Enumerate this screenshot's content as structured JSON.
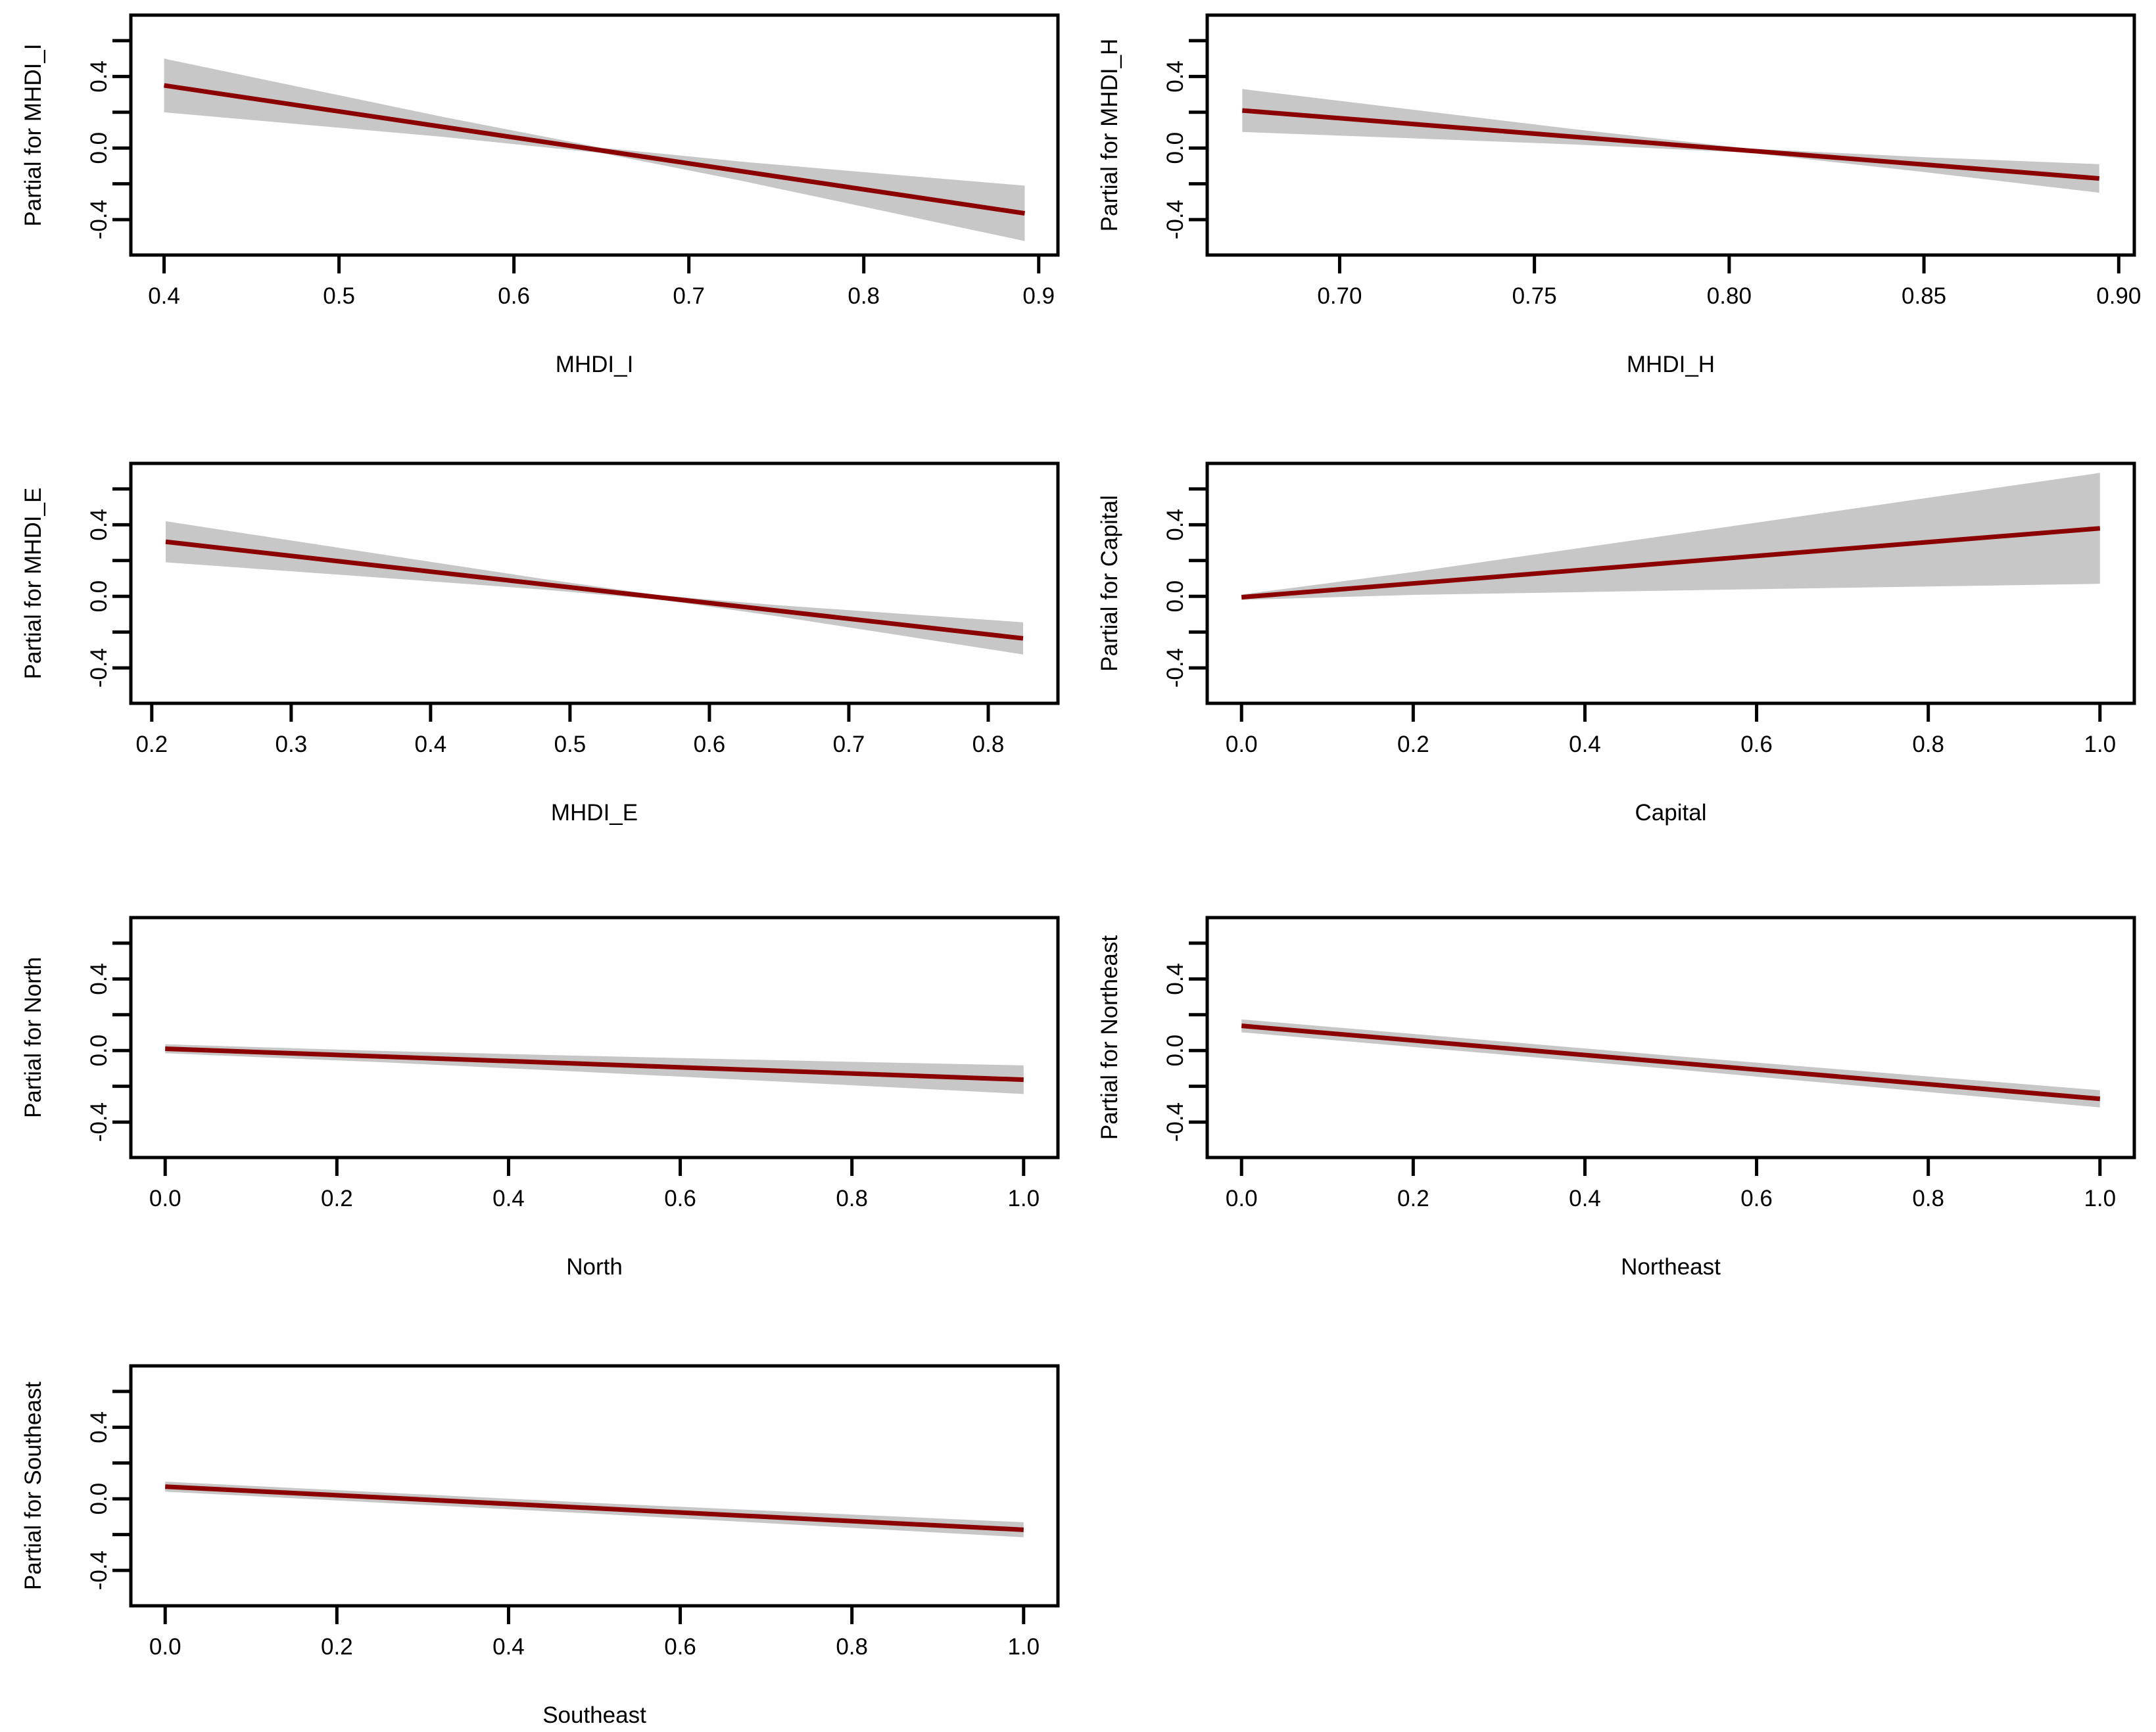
{
  "figure": {
    "background": "#ffffff",
    "line_color": "#8B0000",
    "band_color": "#C7C7C7",
    "axis_color": "#000000"
  },
  "y_axis": {
    "ylim": [
      -0.598,
      0.743
    ],
    "ticks": [
      {
        "v": -0.4,
        "label": "-0.4"
      },
      {
        "v": -0.2,
        "label": ""
      },
      {
        "v": 0.0,
        "label": "0.0"
      },
      {
        "v": 0.2,
        "label": ""
      },
      {
        "v": 0.4,
        "label": "0.4"
      },
      {
        "v": 0.6,
        "label": ""
      }
    ]
  },
  "chart_data": [
    {
      "type": "line",
      "ylabel": "Partial for MHDI_I",
      "xlabel": "MHDI_I",
      "xlim": [
        0.381,
        0.911
      ],
      "xticks": [
        {
          "v": 0.4,
          "label": "0.4"
        },
        {
          "v": 0.5,
          "label": "0.5"
        },
        {
          "v": 0.6,
          "label": "0.6"
        },
        {
          "v": 0.7,
          "label": "0.7"
        },
        {
          "v": 0.8,
          "label": "0.8"
        },
        {
          "v": 0.9,
          "label": "0.9"
        }
      ],
      "line": {
        "x": [
          0.4,
          0.892
        ],
        "y": [
          0.35,
          -0.365
        ]
      },
      "band": {
        "x": [
          0.4,
          0.48,
          0.56,
          0.65,
          0.73,
          0.81,
          0.892
        ],
        "upper": [
          0.5,
          0.336,
          0.173,
          0.002,
          -0.076,
          -0.143,
          -0.21
        ],
        "lower": [
          0.2,
          0.131,
          0.062,
          -0.028,
          -0.183,
          -0.349,
          -0.52
        ]
      }
    },
    {
      "type": "line",
      "ylabel": "Partial for MHDI_H",
      "xlabel": "MHDI_H",
      "xlim": [
        0.666,
        0.904
      ],
      "xticks": [
        {
          "v": 0.7,
          "label": "0.70"
        },
        {
          "v": 0.75,
          "label": "0.75"
        },
        {
          "v": 0.8,
          "label": "0.80"
        },
        {
          "v": 0.85,
          "label": "0.85"
        },
        {
          "v": 0.9,
          "label": "0.90"
        }
      ],
      "line": {
        "x": [
          0.675,
          0.895
        ],
        "y": [
          0.21,
          -0.17
        ]
      },
      "band": {
        "x": [
          0.675,
          0.72,
          0.76,
          0.805,
          0.85,
          0.895
        ],
        "upper": [
          0.33,
          0.211,
          0.106,
          -0.003,
          -0.051,
          -0.09
        ],
        "lower": [
          0.09,
          0.053,
          0.02,
          -0.026,
          -0.134,
          -0.25
        ]
      }
    },
    {
      "type": "line",
      "ylabel": "Partial for MHDI_E",
      "xlabel": "MHDI_E",
      "xlim": [
        0.185,
        0.85
      ],
      "xticks": [
        {
          "v": 0.2,
          "label": "0.2"
        },
        {
          "v": 0.3,
          "label": "0.3"
        },
        {
          "v": 0.4,
          "label": "0.4"
        },
        {
          "v": 0.5,
          "label": "0.5"
        },
        {
          "v": 0.6,
          "label": "0.6"
        },
        {
          "v": 0.7,
          "label": "0.7"
        },
        {
          "v": 0.8,
          "label": "0.8"
        }
      ],
      "line": {
        "x": [
          0.21,
          0.825
        ],
        "y": [
          0.305,
          -0.235
        ]
      },
      "band": {
        "x": [
          0.21,
          0.3,
          0.4,
          0.48,
          0.565,
          0.65,
          0.74,
          0.825
        ],
        "upper": [
          0.42,
          0.312,
          0.193,
          0.098,
          0.005,
          -0.05,
          -0.099,
          -0.145
        ],
        "lower": [
          0.19,
          0.14,
          0.084,
          0.038,
          -0.019,
          -0.113,
          -0.222,
          -0.325
        ]
      }
    },
    {
      "type": "line",
      "ylabel": "Partial for Capital",
      "xlabel": "Capital",
      "xlim": [
        -0.04,
        1.04
      ],
      "xticks": [
        {
          "v": 0.0,
          "label": "0.0"
        },
        {
          "v": 0.2,
          "label": "0.2"
        },
        {
          "v": 0.4,
          "label": "0.4"
        },
        {
          "v": 0.6,
          "label": "0.6"
        },
        {
          "v": 0.8,
          "label": "0.8"
        },
        {
          "v": 1.0,
          "label": "1.0"
        }
      ],
      "line": {
        "x": [
          0.0,
          1.0
        ],
        "y": [
          -0.005,
          0.38
        ]
      },
      "band": {
        "x": [
          0.0,
          0.2,
          0.4,
          0.6,
          0.8,
          1.0
        ],
        "upper": [
          0.01,
          0.136,
          0.274,
          0.412,
          0.551,
          0.69
        ],
        "lower": [
          -0.02,
          0.008,
          0.024,
          0.04,
          0.055,
          0.07
        ]
      }
    },
    {
      "type": "line",
      "ylabel": "Partial for North",
      "xlabel": "North",
      "xlim": [
        -0.04,
        1.04
      ],
      "xticks": [
        {
          "v": 0.0,
          "label": "0.0"
        },
        {
          "v": 0.2,
          "label": "0.2"
        },
        {
          "v": 0.4,
          "label": "0.4"
        },
        {
          "v": 0.6,
          "label": "0.6"
        },
        {
          "v": 0.8,
          "label": "0.8"
        },
        {
          "v": 1.0,
          "label": "1.0"
        }
      ],
      "line": {
        "x": [
          0.0,
          1.0
        ],
        "y": [
          0.01,
          -0.163
        ]
      },
      "band": {
        "x": [
          0.0,
          0.25,
          0.5,
          0.75,
          1.0
        ],
        "upper": [
          0.035,
          -0.002,
          -0.031,
          -0.058,
          -0.083
        ],
        "lower": [
          -0.015,
          -0.065,
          -0.122,
          -0.182,
          -0.243
        ]
      }
    },
    {
      "type": "line",
      "ylabel": "Partial for Northeast",
      "xlabel": "Northeast",
      "xlim": [
        -0.04,
        1.04
      ],
      "xticks": [
        {
          "v": 0.0,
          "label": "0.0"
        },
        {
          "v": 0.2,
          "label": "0.2"
        },
        {
          "v": 0.4,
          "label": "0.4"
        },
        {
          "v": 0.6,
          "label": "0.6"
        },
        {
          "v": 0.8,
          "label": "0.8"
        },
        {
          "v": 1.0,
          "label": "1.0"
        }
      ],
      "line": {
        "x": [
          0.0,
          1.0
        ],
        "y": [
          0.138,
          -0.27
        ]
      },
      "band": {
        "x": [
          0.0,
          0.5,
          1.0
        ],
        "upper": [
          0.174,
          -0.029,
          -0.222
        ],
        "lower": [
          0.102,
          -0.103,
          -0.318
        ]
      }
    },
    {
      "type": "line",
      "ylabel": "Partial for Southeast",
      "xlabel": "Southeast",
      "xlim": [
        -0.04,
        1.04
      ],
      "xticks": [
        {
          "v": 0.0,
          "label": "0.0"
        },
        {
          "v": 0.2,
          "label": "0.2"
        },
        {
          "v": 0.4,
          "label": "0.4"
        },
        {
          "v": 0.6,
          "label": "0.6"
        },
        {
          "v": 0.8,
          "label": "0.8"
        },
        {
          "v": 1.0,
          "label": "1.0"
        }
      ],
      "line": {
        "x": [
          0.0,
          1.0
        ],
        "y": [
          0.068,
          -0.173
        ]
      },
      "band": {
        "x": [
          0.0,
          0.5,
          1.0
        ],
        "upper": [
          0.096,
          -0.023,
          -0.131
        ],
        "lower": [
          0.04,
          -0.083,
          -0.215
        ]
      }
    }
  ]
}
